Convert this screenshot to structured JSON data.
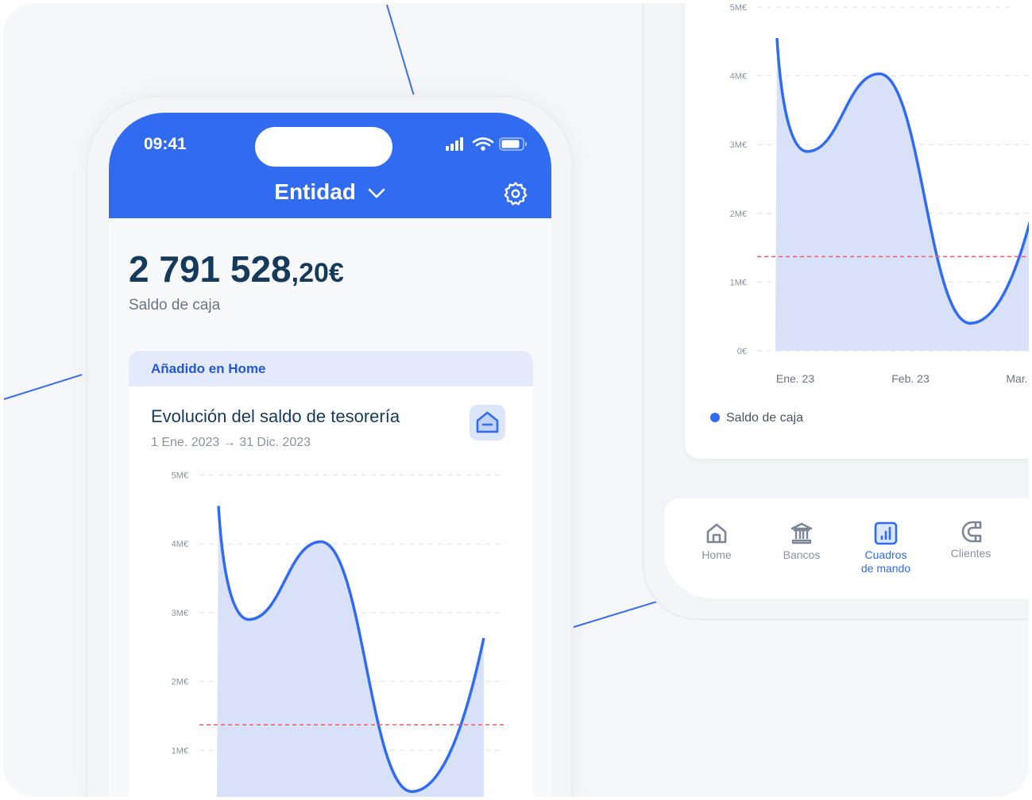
{
  "status_bar": {
    "time": "09:41"
  },
  "header": {
    "title": "Entidad",
    "chevron": "chevron-down-icon",
    "settings": "gear-icon"
  },
  "balance": {
    "integer": "2 791 528",
    "decimals": ",20€",
    "label": "Saldo de caja"
  },
  "card": {
    "band": "Añadido en Home",
    "title": "Evolución del saldo de tesorería",
    "date_range": "1 Ene. 2023 → 31 Dic. 2023",
    "icon": "home-remove-icon"
  },
  "nav": {
    "items": [
      {
        "label": "Home",
        "icon": "home-icon"
      },
      {
        "label": "Bancos",
        "icon": "bank-icon"
      },
      {
        "label": "Cuadros de mando",
        "icon": "chart-icon",
        "active": true
      },
      {
        "label": "Clientes",
        "icon": "magnet-icon"
      }
    ]
  },
  "colors": {
    "accent": "#316cf0",
    "area": "#d8e1f8",
    "threshold": "#f05a66"
  },
  "chart_data": {
    "type": "area",
    "yticks": [
      "0€",
      "1M€",
      "2M€",
      "3M€",
      "4M€",
      "5M€"
    ],
    "ylim": [
      0,
      5
    ],
    "xticks": [
      "Ene. 23",
      "Feb. 23",
      "Mar."
    ],
    "grid": true,
    "legend": "bottom-left",
    "series": [
      {
        "name": "Saldo de caja",
        "points": [
          [
            "2023-01-10",
            4.55
          ],
          [
            "2023-01-18",
            2.9
          ],
          [
            "2023-02-06",
            4.03
          ],
          [
            "2023-03-02",
            0.4
          ],
          [
            "2023-03-21",
            2.63
          ]
        ]
      }
    ],
    "threshold": 1.37
  }
}
